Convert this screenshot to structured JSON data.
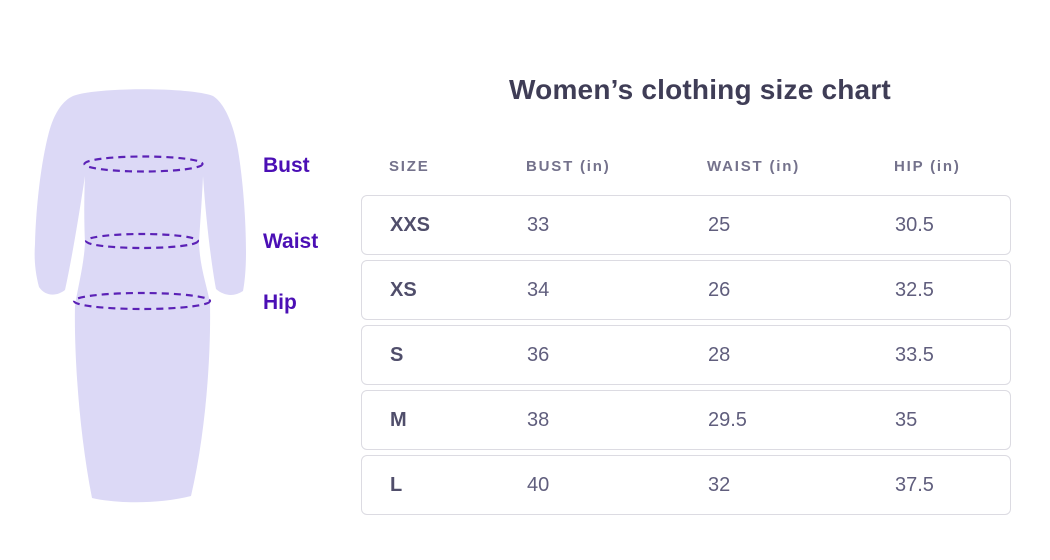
{
  "title": "Women’s clothing size chart",
  "illustration": {
    "labels": {
      "bust": "Bust",
      "waist": "Waist",
      "hip": "Hip"
    },
    "dress_fill": "#dcd9f6",
    "measure_line_color": "#5b21b6",
    "label_color": "#4b0fb5"
  },
  "table": {
    "headers": [
      "SIZE",
      "BUST (in)",
      "WAIST (in)",
      "HIP (in)"
    ],
    "rows": [
      [
        "XXS",
        "33",
        "25",
        "30.5"
      ],
      [
        "XS",
        "34",
        "26",
        "32.5"
      ],
      [
        "S",
        "36",
        "28",
        "33.5"
      ],
      [
        "M",
        "38",
        "29.5",
        "35"
      ],
      [
        "L",
        "40",
        "32",
        "37.5"
      ]
    ]
  },
  "chart_data": {
    "type": "table",
    "title": "Women’s clothing size chart",
    "columns": [
      "SIZE",
      "BUST (in)",
      "WAIST (in)",
      "HIP (in)"
    ],
    "rows": [
      {
        "size": "XXS",
        "bust_in": 33,
        "waist_in": 25,
        "hip_in": 30.5
      },
      {
        "size": "XS",
        "bust_in": 34,
        "waist_in": 26,
        "hip_in": 32.5
      },
      {
        "size": "S",
        "bust_in": 36,
        "waist_in": 28,
        "hip_in": 33.5
      },
      {
        "size": "M",
        "bust_in": 38,
        "waist_in": 29.5,
        "hip_in": 35
      },
      {
        "size": "L",
        "bust_in": 40,
        "waist_in": 32,
        "hip_in": 37.5
      }
    ],
    "measurement_points": [
      "Bust",
      "Waist",
      "Hip"
    ]
  },
  "colors": {
    "title_text": "#3f3d56",
    "header_text": "#74728c",
    "size_text": "#504e6b",
    "value_text": "#605e7d",
    "row_border": "#dcdbe2",
    "background": "#ffffff"
  }
}
